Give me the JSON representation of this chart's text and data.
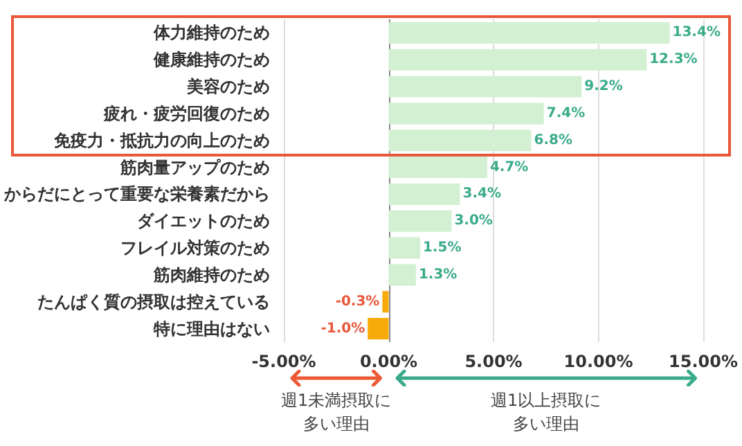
{
  "chart_data": {
    "type": "bar",
    "orientation": "horizontal",
    "categories": [
      "体力維持のため",
      "健康維持のため",
      "美容のため",
      "疲れ・疲労回復のため",
      "免疫力・抵抗力の向上のため",
      "筋肉量アップのため",
      "からだにとって重要な栄養素だから",
      "ダイエットのため",
      "フレイル対策のため",
      "筋肉維持のため",
      "たんぱく質の摂取は控えている",
      "特に理由はない"
    ],
    "values": [
      13.4,
      12.3,
      9.2,
      7.4,
      6.8,
      4.7,
      3.4,
      3.0,
      1.5,
      1.3,
      -0.3,
      -1.0
    ],
    "colors": [
      "#d3f0d3",
      "#d3f0d3",
      "#d3f0d3",
      "#d3f0d3",
      "#d3f0d3",
      "#d3f0d3",
      "#d3f0d3",
      "#d3f0d3",
      "#d3f0d3",
      "#d3f0d3",
      "#f7ab0a",
      "#f7ab0a"
    ],
    "value_labels": [
      "13.4%",
      "12.3%",
      "9.2%",
      "7.4%",
      "6.8%",
      "4.7%",
      "3.4%",
      "3.0%",
      "1.5%",
      "1.3%",
      "-0.3%",
      "-1.0%"
    ],
    "xlim": [
      -5,
      15
    ],
    "xticks": [
      {
        "value": -5,
        "label": "-5.00%"
      },
      {
        "value": 0,
        "label": "0.00%"
      },
      {
        "value": 5,
        "label": "5.00%"
      },
      {
        "value": 10,
        "label": "10.00%"
      },
      {
        "value": 15,
        "label": "15.00%"
      }
    ],
    "grid": "x",
    "annotations": [
      "週1未満摂取に多い理由",
      "週1以上摂取に多い理由"
    ]
  }
}
